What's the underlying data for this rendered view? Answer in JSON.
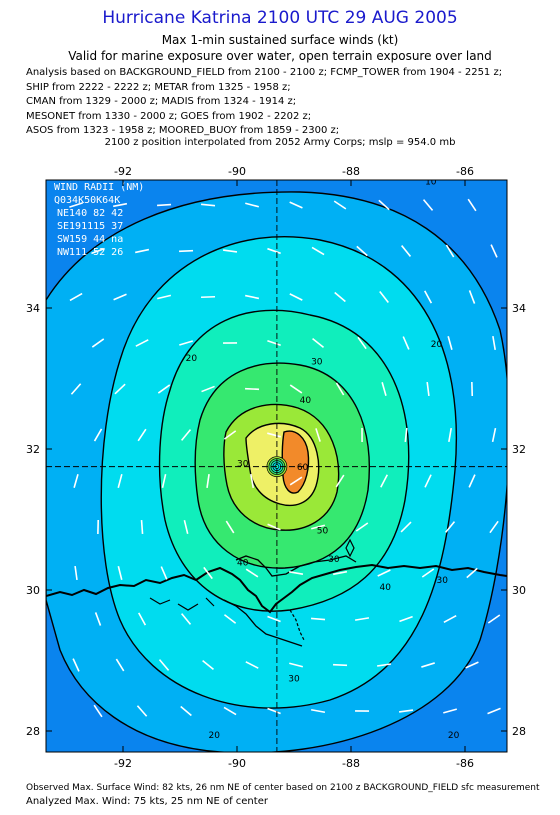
{
  "header": {
    "title": "Hurricane Katrina 2100 UTC 29 AUG 2005",
    "subtitle1": "Max 1-min sustained surface winds (kt)",
    "subtitle2": "Valid for marine exposure over water, open terrain exposure over land",
    "analysis_lines": [
      "Analysis based on  BACKGROUND_FIELD from 2100 - 2100 z;  FCMP_TOWER from 1904 - 2251 z;",
      "SHIP from 2222 - 2222 z;  METAR from 1325 - 1958 z;",
      "CMAN from 1329 - 2000 z;  MADIS from 1324 - 1914 z;",
      "MESONET from 1330 - 2000 z;  GOES from 1902 - 2202 z;",
      "ASOS from 1323 - 1958 z;  MOORED_BUOY from 1859 - 2300 z;"
    ],
    "interp_line": "2100 z position interpolated from 2052 Army Corps; mslp = 954.0 mb"
  },
  "map": {
    "lon_labels": [
      "-92",
      "-90",
      "-88",
      "-86"
    ],
    "lat_labels": [
      "34",
      "32",
      "30",
      "28"
    ],
    "center": {
      "lon": -89.3,
      "lat": 31.75
    },
    "wind_radii": {
      "title": "WIND RADII (NM)",
      "header": "Q034K50K64K",
      "rows": [
        "NE140 82 42",
        "SE191115 37",
        "SW159 44 na",
        "NW111 52 26"
      ]
    },
    "contour_labels": [
      {
        "text": "20",
        "lon": -90.8,
        "lat": 33.25
      },
      {
        "text": "20",
        "lon": -86.5,
        "lat": 33.45
      },
      {
        "text": "30",
        "lon": -88.6,
        "lat": 33.2
      },
      {
        "text": "40",
        "lon": -88.8,
        "lat": 32.65
      },
      {
        "text": "30",
        "lon": -89.9,
        "lat": 31.75
      },
      {
        "text": "50",
        "lon": -88.5,
        "lat": 30.8
      },
      {
        "text": "60",
        "lon": -88.85,
        "lat": 31.7
      },
      {
        "text": "40",
        "lon": -89.9,
        "lat": 30.35
      },
      {
        "text": "30",
        "lon": -88.3,
        "lat": 30.4
      },
      {
        "text": "40",
        "lon": -87.4,
        "lat": 30.0
      },
      {
        "text": "30",
        "lon": -86.4,
        "lat": 30.1
      },
      {
        "text": "30",
        "lon": -89.0,
        "lat": 28.7
      },
      {
        "text": "20",
        "lon": -90.4,
        "lat": 27.9
      },
      {
        "text": "20",
        "lon": -86.2,
        "lat": 27.9
      },
      {
        "text": "10",
        "lon": -86.6,
        "lat": 35.75
      }
    ],
    "colors": {
      "lt10": "#1450ee",
      "c10": "#0a84ee",
      "c20": "#00b0f4",
      "c30": "#00dcef",
      "c40": "#10eebc",
      "c50": "#36e870",
      "c60": "#9ae838",
      "c70": "#eef066",
      "c80": "#f28a2a"
    }
  },
  "footer": {
    "line1": "Observed Max. Surface Wind: 82 kts, 26 nm NE of center based on 2100 z BACKGROUND_FIELD sfc measurement",
    "line2": "Analyzed Max. Wind: 75 kts, 25 nm NE of center"
  }
}
